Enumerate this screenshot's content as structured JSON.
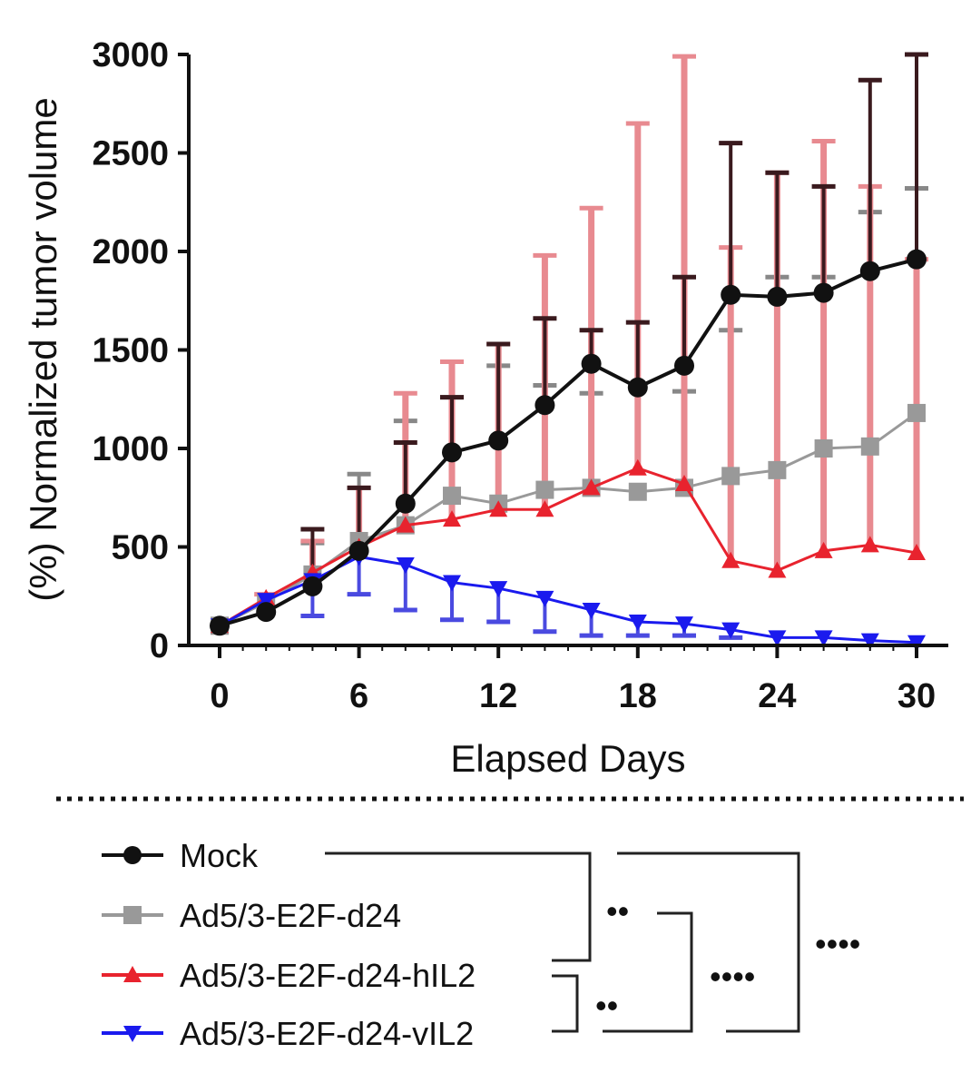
{
  "chart_data": {
    "type": "line",
    "title": "",
    "xlabel": "Elapsed Days",
    "ylabel": "(%) Normalized tumor volume",
    "xlim": [
      0,
      30
    ],
    "ylim": [
      0,
      3000
    ],
    "xticks": [
      0,
      6,
      12,
      18,
      24,
      30
    ],
    "yticks": [
      0,
      500,
      1000,
      1500,
      2000,
      2500,
      3000
    ],
    "x": [
      0,
      2,
      4,
      6,
      8,
      10,
      12,
      14,
      16,
      18,
      20,
      22,
      24,
      26,
      28,
      30
    ],
    "grid": false,
    "legend_placement": "bottom",
    "series": [
      {
        "name": "Mock",
        "color": "#111111",
        "bar_color": "#3a1a1e",
        "marker": "circle",
        "values": [
          100,
          170,
          300,
          480,
          720,
          980,
          1040,
          1220,
          1430,
          1310,
          1420,
          1780,
          1770,
          1790,
          1900,
          1960
        ],
        "error_upper": [
          null,
          null,
          590,
          800,
          1030,
          1260,
          1530,
          1660,
          1600,
          1640,
          1870,
          2550,
          2400,
          2330,
          2870,
          3000
        ]
      },
      {
        "name": "Ad5/3-E2F-d24",
        "color": "#999999",
        "bar_color": "#888888",
        "marker": "square",
        "values": [
          100,
          220,
          360,
          530,
          610,
          760,
          720,
          790,
          800,
          780,
          800,
          860,
          890,
          1000,
          1010,
          1180
        ],
        "error_upper": [
          null,
          null,
          520,
          870,
          1140,
          1260,
          1420,
          1320,
          1280,
          null,
          1290,
          1600,
          1870,
          1870,
          2200,
          2320
        ]
      },
      {
        "name": "Ad5/3-E2F-d24-hIL2",
        "color": "#e8232e",
        "bar_color": "#e88a90",
        "marker": "triangle-up",
        "values": [
          100,
          240,
          370,
          500,
          610,
          640,
          690,
          690,
          800,
          900,
          820,
          430,
          380,
          480,
          510,
          470
        ],
        "error_upper": [
          null,
          260,
          530,
          800,
          1280,
          1440,
          1530,
          1980,
          2220,
          2650,
          2990,
          2020,
          2400,
          2560,
          2330,
          1960
        ]
      },
      {
        "name": "Ad5/3-E2F-d24-vIL2",
        "color": "#1a1aee",
        "bar_color": "#4a4ae0",
        "marker": "triangle-down",
        "values": [
          100,
          230,
          330,
          450,
          410,
          320,
          290,
          240,
          180,
          120,
          110,
          80,
          40,
          40,
          25,
          15
        ],
        "error_lower": [
          null,
          null,
          150,
          260,
          180,
          130,
          120,
          70,
          50,
          50,
          50,
          40,
          null,
          null,
          null,
          null
        ]
      }
    ],
    "significance": [
      "••",
      "••",
      "••••",
      "••••"
    ]
  }
}
